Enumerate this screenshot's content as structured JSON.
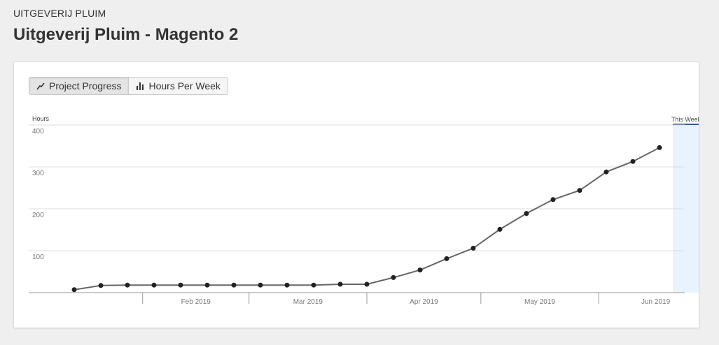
{
  "header": {
    "client": "UITGEVERIJ PLUIM",
    "title": "Uitgeverij Pluim - Magento 2"
  },
  "toolbar": {
    "project_progress_label": "Project Progress",
    "project_progress_icon": "line-chart-icon",
    "hours_per_week_label": "Hours Per Week",
    "hours_per_week_icon": "bar-chart-icon"
  },
  "chart_data": {
    "type": "line",
    "ylabel": "Hours",
    "ylim": [
      0,
      400
    ],
    "yticks": [
      100,
      200,
      300,
      400
    ],
    "grid": true,
    "x_tick_labels": [
      "Feb 2019",
      "Mar 2019",
      "Apr 2019",
      "May 2019",
      "Jun 2019"
    ],
    "highlight_label": "This Week",
    "series": [
      {
        "x": [
          "2019-01-14",
          "2019-01-21",
          "2019-01-28",
          "2019-02-04",
          "2019-02-11",
          "2019-02-18",
          "2019-02-25",
          "2019-03-04",
          "2019-03-11",
          "2019-03-18",
          "2019-03-25",
          "2019-04-01",
          "2019-04-08",
          "2019-04-15",
          "2019-04-22",
          "2019-04-29",
          "2019-05-06",
          "2019-05-13",
          "2019-05-20",
          "2019-05-27",
          "2019-06-03",
          "2019-06-10",
          "2019-06-17",
          "2019-06-24"
        ],
        "values": [
          7,
          17,
          18,
          18,
          18,
          18,
          18,
          18,
          18,
          18,
          20,
          20,
          36,
          54,
          81,
          106,
          151,
          189,
          222,
          244,
          288,
          313,
          346,
          346
        ],
        "color": "#666666"
      }
    ]
  },
  "colors": {
    "line": "#666666",
    "point": "#222222",
    "highlight_fill": "#e8f3fe",
    "highlight_bar": "#2f5da8",
    "grid": "#dddddd",
    "axis_text": "#777777"
  }
}
